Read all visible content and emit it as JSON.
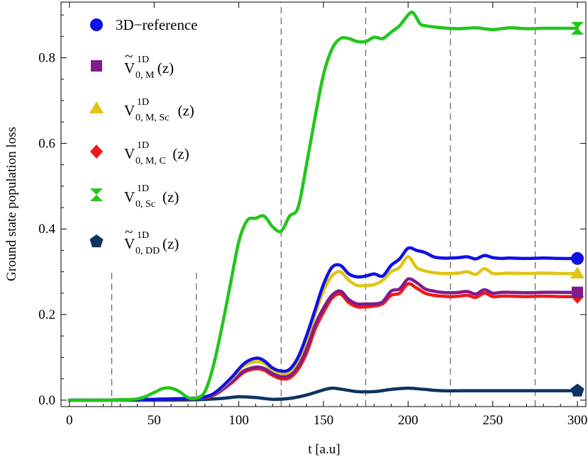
{
  "chart_data": {
    "type": "line",
    "title": "",
    "xlabel": "t  [a.u]",
    "ylabel": "Ground  state  population  loss",
    "xlim": [
      -5,
      305
    ],
    "ylim": [
      -0.015,
      0.93
    ],
    "xticks": [
      0,
      50,
      100,
      150,
      200,
      250,
      300
    ],
    "yticks": [
      0.0,
      0.2,
      0.4,
      0.6,
      0.8
    ],
    "xtick_labels": [
      "0",
      "50",
      "100",
      "150",
      "200",
      "250",
      "300"
    ],
    "ytick_labels": [
      "0.0",
      "0.2",
      "0.4",
      "0.6",
      "0.8"
    ],
    "grid": false,
    "legend_position": "top-left",
    "dashed_vlines": [
      {
        "x": 25,
        "y_top": 0.3
      },
      {
        "x": 75,
        "y_top": 0.3
      },
      {
        "x": 125,
        "y_top": 0.93
      },
      {
        "x": 175,
        "y_top": 0.93
      },
      {
        "x": 225,
        "y_top": 0.93
      },
      {
        "x": 275,
        "y_top": 0.93
      }
    ],
    "series": [
      {
        "name": "3D−reference",
        "legend_parts": [
          "3D−reference"
        ],
        "tilde": false,
        "color": "#1010e8",
        "marker": "circle",
        "x": [
          0,
          20,
          40,
          60,
          75,
          85,
          95,
          103,
          110,
          115,
          120,
          125,
          130,
          135,
          140,
          145,
          150,
          155,
          160,
          165,
          170,
          175,
          180,
          185,
          190,
          195,
          200,
          205,
          210,
          215,
          220,
          225,
          230,
          235,
          240,
          245,
          250,
          255,
          260,
          270,
          280,
          290,
          300
        ],
        "y": [
          0,
          0,
          0.001,
          0.003,
          0.005,
          0.015,
          0.05,
          0.085,
          0.098,
          0.092,
          0.075,
          0.068,
          0.072,
          0.1,
          0.15,
          0.21,
          0.27,
          0.31,
          0.315,
          0.295,
          0.288,
          0.29,
          0.295,
          0.29,
          0.315,
          0.33,
          0.355,
          0.35,
          0.345,
          0.335,
          0.332,
          0.332,
          0.333,
          0.335,
          0.33,
          0.338,
          0.333,
          0.331,
          0.332,
          0.331,
          0.332,
          0.331,
          0.331
        ]
      },
      {
        "name": "Ṽ 1D 0,M (z)",
        "legend_parts": [
          "V",
          "1D",
          "0, M",
          "(z)"
        ],
        "tilde": true,
        "color": "#801c8c",
        "marker": "square",
        "x": [
          0,
          20,
          40,
          60,
          75,
          85,
          95,
          103,
          110,
          115,
          120,
          125,
          130,
          135,
          140,
          145,
          150,
          155,
          160,
          165,
          170,
          175,
          180,
          185,
          190,
          195,
          200,
          205,
          210,
          215,
          220,
          225,
          230,
          235,
          240,
          245,
          250,
          255,
          260,
          270,
          280,
          290,
          300
        ],
        "y": [
          0,
          0,
          0.001,
          0.003,
          0.004,
          0.012,
          0.04,
          0.068,
          0.077,
          0.074,
          0.062,
          0.055,
          0.058,
          0.08,
          0.12,
          0.175,
          0.215,
          0.245,
          0.255,
          0.235,
          0.225,
          0.225,
          0.225,
          0.23,
          0.255,
          0.26,
          0.283,
          0.275,
          0.26,
          0.255,
          0.252,
          0.251,
          0.252,
          0.254,
          0.248,
          0.258,
          0.25,
          0.252,
          0.252,
          0.251,
          0.252,
          0.252,
          0.252
        ]
      },
      {
        "name": "V 1D 0,M,Sc (z)",
        "legend_parts": [
          "V",
          "1D",
          "0, M, Sc",
          "(z)"
        ],
        "tilde": false,
        "color": "#e0c414",
        "marker": "triangle",
        "x": [
          0,
          20,
          40,
          60,
          75,
          85,
          95,
          103,
          110,
          115,
          120,
          125,
          130,
          135,
          140,
          145,
          150,
          155,
          160,
          165,
          170,
          175,
          180,
          185,
          190,
          195,
          200,
          205,
          210,
          215,
          220,
          225,
          230,
          235,
          240,
          245,
          250,
          255,
          260,
          270,
          280,
          290,
          300
        ],
        "y": [
          0,
          0,
          0.001,
          0.003,
          0.005,
          0.014,
          0.047,
          0.08,
          0.09,
          0.086,
          0.07,
          0.063,
          0.066,
          0.093,
          0.14,
          0.2,
          0.255,
          0.29,
          0.3,
          0.28,
          0.268,
          0.268,
          0.27,
          0.28,
          0.3,
          0.31,
          0.335,
          0.31,
          0.302,
          0.298,
          0.296,
          0.296,
          0.297,
          0.3,
          0.294,
          0.307,
          0.296,
          0.296,
          0.297,
          0.296,
          0.297,
          0.296,
          0.296
        ]
      },
      {
        "name": "V 1D 0,M,C (z)",
        "legend_parts": [
          "V",
          "1D",
          "0, M, C",
          "(z)"
        ],
        "tilde": false,
        "color": "#f01818",
        "marker": "diamond",
        "x": [
          0,
          20,
          40,
          60,
          75,
          85,
          95,
          103,
          110,
          115,
          120,
          125,
          130,
          135,
          140,
          145,
          150,
          155,
          160,
          165,
          170,
          175,
          180,
          185,
          190,
          195,
          200,
          205,
          210,
          215,
          220,
          225,
          230,
          235,
          240,
          245,
          250,
          255,
          260,
          270,
          280,
          290,
          300
        ],
        "y": [
          0,
          0,
          0.001,
          0.003,
          0.004,
          0.011,
          0.038,
          0.065,
          0.073,
          0.07,
          0.058,
          0.05,
          0.052,
          0.072,
          0.11,
          0.165,
          0.205,
          0.238,
          0.248,
          0.228,
          0.218,
          0.218,
          0.22,
          0.225,
          0.245,
          0.25,
          0.272,
          0.262,
          0.25,
          0.245,
          0.243,
          0.242,
          0.243,
          0.245,
          0.24,
          0.25,
          0.242,
          0.243,
          0.243,
          0.242,
          0.243,
          0.242,
          0.242
        ]
      },
      {
        "name": "V 1D 0,Sc (z)",
        "legend_parts": [
          "V",
          "1D",
          "0, Sc",
          "(z)"
        ],
        "tilde": false,
        "color": "#22c61a",
        "marker": "hourglass",
        "x": [
          0,
          20,
          40,
          50,
          55,
          60,
          65,
          70,
          75,
          80,
          85,
          90,
          95,
          100,
          105,
          110,
          115,
          120,
          125,
          130,
          135,
          140,
          145,
          150,
          155,
          160,
          165,
          170,
          175,
          180,
          185,
          190,
          195,
          200,
          203,
          207,
          210,
          220,
          230,
          240,
          250,
          260,
          270,
          280,
          290,
          300
        ],
        "y": [
          0,
          0,
          0.003,
          0.018,
          0.027,
          0.028,
          0.02,
          0.006,
          0.005,
          0.02,
          0.08,
          0.17,
          0.27,
          0.37,
          0.42,
          0.425,
          0.43,
          0.405,
          0.395,
          0.43,
          0.45,
          0.55,
          0.66,
          0.76,
          0.82,
          0.845,
          0.845,
          0.838,
          0.838,
          0.848,
          0.845,
          0.86,
          0.875,
          0.9,
          0.905,
          0.88,
          0.875,
          0.87,
          0.868,
          0.87,
          0.866,
          0.87,
          0.868,
          0.869,
          0.869,
          0.869
        ]
      },
      {
        "name": "Ṽ 1D 0,DD (z)",
        "legend_parts": [
          "V",
          "1D",
          "0, DD",
          "(z)"
        ],
        "tilde": true,
        "color": "#0c3462",
        "marker": "pentagon",
        "x": [
          0,
          50,
          75,
          90,
          100,
          110,
          120,
          130,
          140,
          150,
          155,
          160,
          170,
          180,
          190,
          200,
          210,
          220,
          240,
          260,
          280,
          300
        ],
        "y": [
          0,
          0,
          0.001,
          0.004,
          0.008,
          0.006,
          0.002,
          0.004,
          0.012,
          0.024,
          0.028,
          0.026,
          0.02,
          0.02,
          0.025,
          0.028,
          0.025,
          0.022,
          0.022,
          0.022,
          0.022,
          0.022
        ]
      }
    ]
  }
}
